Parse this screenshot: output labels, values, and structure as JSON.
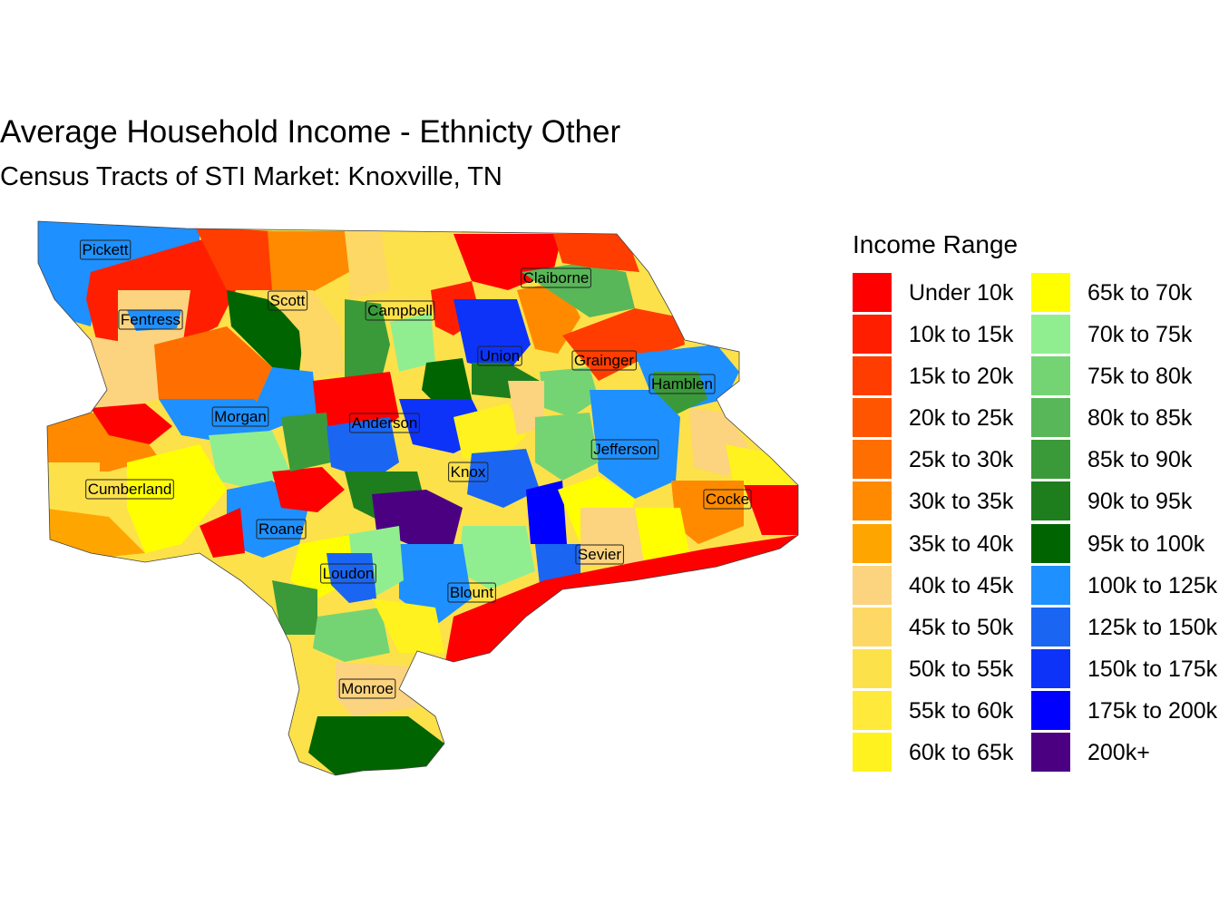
{
  "title": "Average Household Income - Ethnicty Other",
  "subtitle": "Census Tracts of STI Market: Knoxville, TN",
  "legend": {
    "title": "Income Range",
    "items": [
      {
        "label": "Under 10k",
        "color": "#ff0000"
      },
      {
        "label": "10k to 15k",
        "color": "#ff1f00"
      },
      {
        "label": "15k to 20k",
        "color": "#ff3d00"
      },
      {
        "label": "20k to 25k",
        "color": "#ff5500"
      },
      {
        "label": "25k to 30k",
        "color": "#ff6e00"
      },
      {
        "label": "30k to 35k",
        "color": "#ff8a00"
      },
      {
        "label": "35k to 40k",
        "color": "#ffa500"
      },
      {
        "label": "40k to 45k",
        "color": "#fcd37e"
      },
      {
        "label": "45k to 50k",
        "color": "#fdd865"
      },
      {
        "label": "50k to 55k",
        "color": "#fde14a"
      },
      {
        "label": "55k to 60k",
        "color": "#ffe93a"
      },
      {
        "label": "60k to 65k",
        "color": "#fff21f"
      },
      {
        "label": "65k to 70k",
        "color": "#ffff00"
      },
      {
        "label": "70k to 75k",
        "color": "#90ee90"
      },
      {
        "label": "75k to 80k",
        "color": "#74d474"
      },
      {
        "label": "80k to 85k",
        "color": "#58b758"
      },
      {
        "label": "85k to 90k",
        "color": "#3a9a3a"
      },
      {
        "label": "90k to 95k",
        "color": "#1e7e1e"
      },
      {
        "label": "95k to 100k",
        "color": "#006400"
      },
      {
        "label": "100k to 125k",
        "color": "#1e90ff"
      },
      {
        "label": "125k to 150k",
        "color": "#1a66f2"
      },
      {
        "label": "150k to 175k",
        "color": "#0d33f9"
      },
      {
        "label": "175k to 200k",
        "color": "#0000ff"
      },
      {
        "label": "200k+",
        "color": "#4b0082"
      }
    ]
  },
  "counties": [
    "Pickett",
    "Scott",
    "Campbell",
    "Claiborne",
    "Fentress",
    "Union",
    "Grainger",
    "Hamblen",
    "Morgan",
    "Anderson",
    "Jefferson",
    "Knox",
    "Cumberland",
    "Cocke",
    "Roane",
    "Sevier",
    "Loudon",
    "Blount",
    "Monroe"
  ]
}
